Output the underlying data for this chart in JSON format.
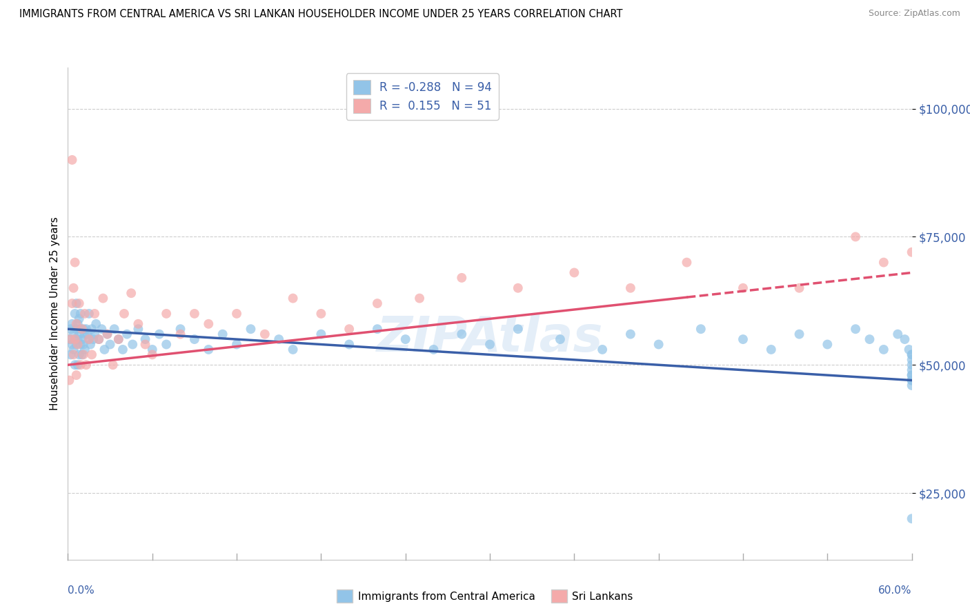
{
  "title": "IMMIGRANTS FROM CENTRAL AMERICA VS SRI LANKAN HOUSEHOLDER INCOME UNDER 25 YEARS CORRELATION CHART",
  "source": "Source: ZipAtlas.com",
  "ylabel": "Householder Income Under 25 years",
  "legend1_r": "-0.288",
  "legend1_n": "94",
  "legend2_r": " 0.155",
  "legend2_n": "51",
  "legend1_label": "Immigrants from Central America",
  "legend2_label": "Sri Lankans",
  "blue_color": "#92C4E8",
  "pink_color": "#F4AAAA",
  "blue_line_color": "#3A5FA8",
  "pink_line_color": "#E05070",
  "watermark": "ZIPAtlas",
  "xlim_low": 0.0,
  "xlim_high": 0.6,
  "ylim_low": 12000,
  "ylim_high": 108000,
  "ytick_values": [
    25000,
    50000,
    75000,
    100000
  ],
  "ytick_labels": [
    "$25,000",
    "$50,000",
    "$75,000",
    "$100,000"
  ],
  "blue_x": [
    0.001,
    0.002,
    0.002,
    0.003,
    0.003,
    0.004,
    0.004,
    0.005,
    0.005,
    0.005,
    0.006,
    0.006,
    0.006,
    0.007,
    0.007,
    0.007,
    0.008,
    0.008,
    0.008,
    0.009,
    0.009,
    0.009,
    0.01,
    0.01,
    0.011,
    0.011,
    0.012,
    0.012,
    0.013,
    0.014,
    0.015,
    0.015,
    0.016,
    0.017,
    0.018,
    0.019,
    0.02,
    0.022,
    0.024,
    0.026,
    0.028,
    0.03,
    0.033,
    0.036,
    0.039,
    0.042,
    0.046,
    0.05,
    0.055,
    0.06,
    0.065,
    0.07,
    0.08,
    0.09,
    0.1,
    0.11,
    0.12,
    0.13,
    0.15,
    0.16,
    0.18,
    0.2,
    0.22,
    0.24,
    0.26,
    0.28,
    0.3,
    0.32,
    0.35,
    0.38,
    0.4,
    0.42,
    0.45,
    0.48,
    0.5,
    0.52,
    0.54,
    0.56,
    0.57,
    0.58,
    0.59,
    0.595,
    0.598,
    0.6,
    0.6,
    0.6,
    0.6,
    0.6,
    0.6,
    0.6,
    0.6,
    0.6,
    0.6,
    0.6
  ],
  "blue_y": [
    55000,
    57000,
    52000,
    58000,
    54000,
    56000,
    53000,
    60000,
    55000,
    50000,
    57000,
    54000,
    62000,
    58000,
    55000,
    50000,
    56000,
    52000,
    59000,
    57000,
    54000,
    60000,
    55000,
    52000,
    57000,
    54000,
    56000,
    53000,
    57000,
    56000,
    55000,
    60000,
    54000,
    57000,
    55000,
    56000,
    58000,
    55000,
    57000,
    53000,
    56000,
    54000,
    57000,
    55000,
    53000,
    56000,
    54000,
    57000,
    55000,
    53000,
    56000,
    54000,
    57000,
    55000,
    53000,
    56000,
    54000,
    57000,
    55000,
    53000,
    56000,
    54000,
    57000,
    55000,
    53000,
    56000,
    54000,
    57000,
    55000,
    53000,
    56000,
    54000,
    57000,
    55000,
    53000,
    56000,
    54000,
    57000,
    55000,
    53000,
    56000,
    55000,
    53000,
    47000,
    52000,
    48000,
    50000,
    46000,
    52000,
    49000,
    51000,
    47000,
    20000,
    48000
  ],
  "pink_x": [
    0.001,
    0.002,
    0.003,
    0.003,
    0.004,
    0.004,
    0.005,
    0.005,
    0.006,
    0.006,
    0.007,
    0.008,
    0.009,
    0.01,
    0.011,
    0.012,
    0.013,
    0.015,
    0.017,
    0.019,
    0.022,
    0.025,
    0.028,
    0.032,
    0.036,
    0.04,
    0.045,
    0.05,
    0.055,
    0.06,
    0.07,
    0.08,
    0.09,
    0.1,
    0.12,
    0.14,
    0.16,
    0.18,
    0.2,
    0.22,
    0.25,
    0.28,
    0.32,
    0.36,
    0.4,
    0.44,
    0.48,
    0.52,
    0.56,
    0.58,
    0.6
  ],
  "pink_y": [
    47000,
    55000,
    62000,
    90000,
    52000,
    65000,
    55000,
    70000,
    48000,
    58000,
    54000,
    62000,
    50000,
    57000,
    52000,
    60000,
    50000,
    55000,
    52000,
    60000,
    55000,
    63000,
    56000,
    50000,
    55000,
    60000,
    64000,
    58000,
    54000,
    52000,
    60000,
    56000,
    60000,
    58000,
    60000,
    56000,
    63000,
    60000,
    57000,
    62000,
    63000,
    67000,
    65000,
    68000,
    65000,
    70000,
    65000,
    65000,
    75000,
    70000,
    72000
  ],
  "blue_trendline": [
    57000,
    47000
  ],
  "pink_trendline_solid_end_x": 0.44,
  "pink_trendline": [
    50000,
    68000
  ]
}
